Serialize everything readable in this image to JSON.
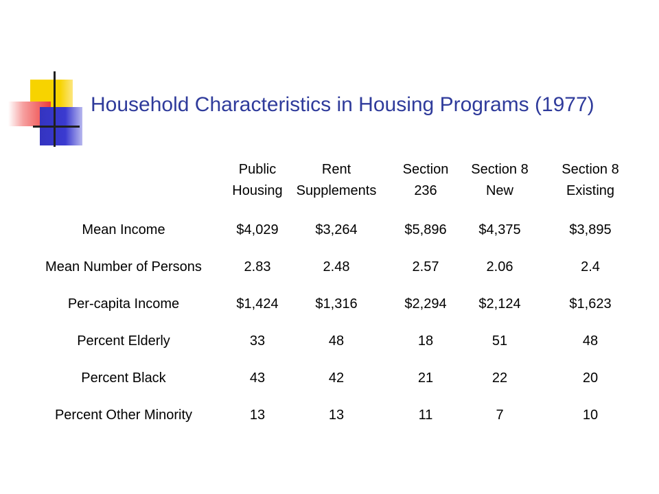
{
  "slide": {
    "title": "Household Characteristics in Housing Programs (1977)"
  },
  "table": {
    "columns": [
      {
        "line1": "Public",
        "line2": "Housing"
      },
      {
        "line1": "Rent",
        "line2": "Supplements"
      },
      {
        "line1": "Section",
        "line2": "236"
      },
      {
        "line1": "Section 8",
        "line2": "New"
      },
      {
        "line1": "Section 8",
        "line2": "Existing"
      }
    ],
    "rows": [
      {
        "label": "Mean Income",
        "values": [
          "$4,029",
          "$3,264",
          "$5,896",
          "$4,375",
          "$3,895"
        ]
      },
      {
        "label": "Mean Number of Persons",
        "values": [
          "2.83",
          "2.48",
          "2.57",
          "2.06",
          "2.4"
        ]
      },
      {
        "label": "Per-capita Income",
        "values": [
          "$1,424",
          "$1,316",
          "$2,294",
          "$2,124",
          "$1,623"
        ]
      },
      {
        "label": "Percent Elderly",
        "values": [
          "33",
          "48",
          "18",
          "51",
          "48"
        ]
      },
      {
        "label": "Percent Black",
        "values": [
          "43",
          "42",
          "21",
          "22",
          "20"
        ]
      },
      {
        "label": "Percent Other Minority",
        "values": [
          "13",
          "13",
          "11",
          "7",
          "10"
        ]
      }
    ]
  }
}
